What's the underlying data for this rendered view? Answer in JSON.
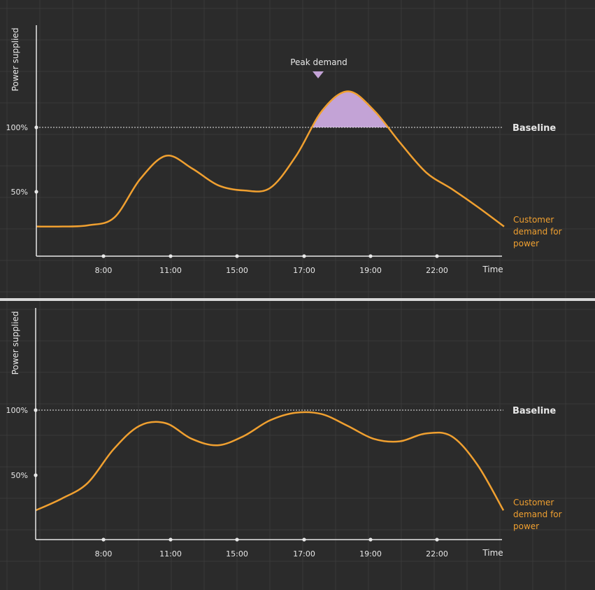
{
  "colors": {
    "background": "#2b2b2b",
    "grid": "#3a3a3a",
    "axis": "#e8e8e8",
    "curve": "#f0a030",
    "peak_fill": "#c3a3d6",
    "text": "#e8e8e8"
  },
  "chart_data": [
    {
      "type": "line",
      "ylabel": "Power supplied",
      "xlabel": "Time",
      "ytick_labels": [
        "100%",
        "50%"
      ],
      "yticks": [
        100,
        50
      ],
      "x_tick_labels": [
        "8:00",
        "11:00",
        "15:00",
        "17:00",
        "19:00",
        "22:00"
      ],
      "baseline": {
        "label": "Baseline",
        "value": 100
      },
      "annotation": "Peak demand",
      "series": [
        {
          "name": "Customer demand for power",
          "label_lines": [
            "Customer",
            "demand for",
            "power"
          ],
          "points": [
            [
              "6:00",
              23
            ],
            [
              "7:00",
              23
            ],
            [
              "8:00",
              24
            ],
            [
              "9:00",
              30
            ],
            [
              "10:00",
              60
            ],
            [
              "11:00",
              78
            ],
            [
              "12:00",
              68
            ],
            [
              "13:00",
              55
            ],
            [
              "14:00",
              51
            ],
            [
              "15:00",
              53
            ],
            [
              "16:00",
              78
            ],
            [
              "17:00",
              113
            ],
            [
              "18:00",
              128
            ],
            [
              "19:00",
              113
            ],
            [
              "20:00",
              88
            ],
            [
              "21:00",
              65
            ],
            [
              "22:00",
              52
            ],
            [
              "23:00",
              38
            ],
            [
              "24:00",
              23
            ]
          ]
        }
      ]
    },
    {
      "type": "line",
      "ylabel": "Power supplied",
      "xlabel": "Time",
      "ytick_labels": [
        "100%",
        "50%"
      ],
      "yticks": [
        100,
        50
      ],
      "x_tick_labels": [
        "8:00",
        "11:00",
        "15:00",
        "17:00",
        "19:00",
        "22:00"
      ],
      "baseline": {
        "label": "Baseline",
        "value": 100
      },
      "series": [
        {
          "name": "Customer demand for power",
          "label_lines": [
            "Customer",
            "demand for",
            "power"
          ],
          "points": [
            [
              "6:00",
              23
            ],
            [
              "7:00",
              32
            ],
            [
              "8:00",
              44
            ],
            [
              "9:00",
              70
            ],
            [
              "10:00",
              88
            ],
            [
              "11:00",
              90
            ],
            [
              "12:00",
              78
            ],
            [
              "13:00",
              73
            ],
            [
              "14:00",
              80
            ],
            [
              "15:00",
              92
            ],
            [
              "16:00",
              98
            ],
            [
              "17:00",
              97
            ],
            [
              "18:00",
              88
            ],
            [
              "19:00",
              78
            ],
            [
              "20:00",
              76
            ],
            [
              "21:00",
              82
            ],
            [
              "22:00",
              80
            ],
            [
              "23:00",
              58
            ],
            [
              "24:00",
              23
            ]
          ]
        }
      ]
    }
  ]
}
